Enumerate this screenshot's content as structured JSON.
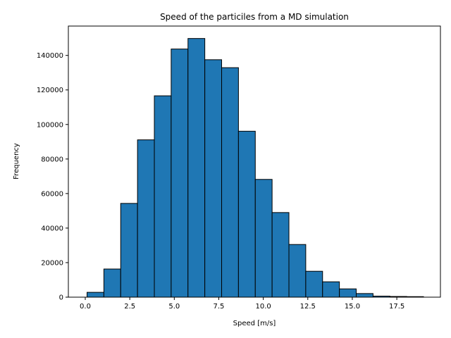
{
  "chart_data": {
    "type": "bar",
    "title": "Speed of the particiles from a MD simulation",
    "xlabel": "Speed [m/s]",
    "ylabel": "Frequency",
    "xlim": [
      -0.95,
      19.95
    ],
    "ylim": [
      0,
      157000
    ],
    "xticks": [
      0.0,
      2.5,
      5.0,
      7.5,
      10.0,
      12.5,
      15.0,
      17.5
    ],
    "xtick_labels": [
      "0.0",
      "2.5",
      "5.0",
      "7.5",
      "10.0",
      "12.5",
      "15.0",
      "17.5"
    ],
    "yticks": [
      0,
      20000,
      40000,
      60000,
      80000,
      100000,
      120000,
      140000
    ],
    "ytick_labels": [
      "0",
      "20000",
      "40000",
      "60000",
      "80000",
      "100000",
      "120000",
      "140000"
    ],
    "bin_edges": [
      0.1,
      1.045,
      1.99,
      2.935,
      3.88,
      4.825,
      5.77,
      6.715,
      7.66,
      8.605,
      9.55,
      10.495,
      11.44,
      12.385,
      13.33,
      14.275,
      15.22,
      16.165,
      17.11,
      18.055,
      19.0
    ],
    "values": [
      2800,
      16300,
      54300,
      91100,
      116600,
      143700,
      149800,
      137500,
      132900,
      96100,
      68200,
      49000,
      30500,
      15000,
      8900,
      4800,
      2100,
      600,
      400,
      300
    ],
    "bar_color": "#1f77b4",
    "edge_color": "#000000",
    "grid": false
  }
}
